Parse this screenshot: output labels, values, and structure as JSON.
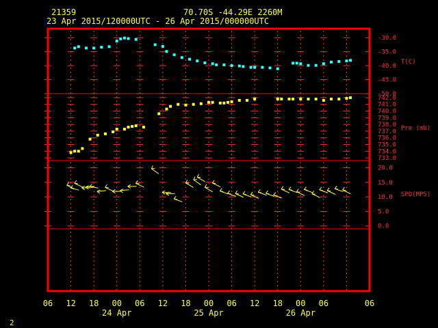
{
  "header": {
    "station": "21359",
    "location": "70.70S   -44.29E   2260M",
    "period": "23 Apr 2015/120000UTC - 26 Apr 2015/000000UTC"
  },
  "footer": {
    "page": "2"
  },
  "colors": {
    "frame": "#ff0000",
    "grid": "#ff3333",
    "temperature": "#33ffff",
    "pressure": "#ffff33",
    "wind": "#ffff55",
    "text": "#ffff44"
  },
  "chart_data": [
    {
      "type": "scatter",
      "panel": "temperature",
      "ylabel": "T(C)",
      "ylim": [
        -50,
        -27.5
      ],
      "yticks": [
        -30,
        -35,
        -40,
        -45,
        -50
      ],
      "ytick_labels": [
        "-30.0",
        "-35.0",
        "-40.0",
        "-45.0",
        "-50.0"
      ],
      "x_hours": [
        13,
        14,
        16,
        18,
        20,
        22,
        24,
        25,
        26,
        27,
        29,
        34,
        36,
        37,
        39,
        41,
        43,
        45,
        47,
        49,
        50,
        52,
        54,
        56,
        57,
        59,
        60,
        62,
        64,
        66,
        70,
        71,
        72,
        74,
        76,
        78,
        80,
        82,
        84,
        85
      ],
      "y": [
        -33.7,
        -33.2,
        -33.7,
        -33.7,
        -33.4,
        -33.2,
        -31.2,
        -30.4,
        -30.1,
        -30.3,
        -30.6,
        -32.5,
        -33.1,
        -34.9,
        -36.1,
        -37.1,
        -37.7,
        -38.3,
        -39.0,
        -39.3,
        -39.7,
        -39.7,
        -40.0,
        -40.1,
        -40.3,
        -40.6,
        -40.6,
        -40.6,
        -40.8,
        -41.1,
        -39.1,
        -39.1,
        -39.3,
        -39.9,
        -39.9,
        -39.3,
        -38.7,
        -38.5,
        -38.3,
        -38.1
      ]
    },
    {
      "type": "scatter",
      "panel": "pressure",
      "ylabel": "Pre (mb)",
      "ylim": [
        732.6,
        742.3
      ],
      "yticks": [
        742,
        741,
        740,
        739,
        738,
        737,
        736,
        735,
        734,
        733
      ],
      "ytick_labels": [
        "742.0",
        "741.0",
        "740.0",
        "739.0",
        "738.0",
        "737.0",
        "736.0",
        "735.0",
        "734.0",
        "733.0"
      ],
      "x_hours": [
        12,
        13,
        14,
        15,
        17,
        19,
        21,
        23,
        24,
        26,
        27,
        28,
        29,
        31,
        35,
        37,
        38,
        40,
        42,
        44,
        46,
        48,
        49,
        51,
        52,
        53,
        54,
        56,
        58,
        60,
        66,
        67,
        69,
        70,
        72,
        74,
        76,
        78,
        80,
        82,
        84,
        85
      ],
      "y": [
        733.8,
        734.0,
        734.0,
        734.4,
        735.8,
        736.4,
        736.6,
        736.9,
        737.3,
        737.3,
        737.6,
        737.7,
        737.8,
        737.6,
        739.6,
        740.3,
        740.7,
        741.0,
        740.9,
        741.0,
        741.1,
        741.3,
        741.3,
        741.2,
        741.2,
        741.3,
        741.4,
        741.6,
        741.6,
        741.8,
        741.8,
        741.8,
        741.8,
        741.8,
        741.8,
        741.8,
        741.8,
        741.6,
        741.8,
        741.8,
        741.9,
        742.0
      ]
    },
    {
      "type": "scatter",
      "panel": "wind",
      "ylabel": "SPD(MPS)",
      "ylim": [
        -1,
        22
      ],
      "yticks": [
        20,
        15,
        10,
        5,
        0
      ],
      "ytick_labels": [
        "20.0",
        "15.0",
        "10.0",
        "5.0",
        "0.0"
      ],
      "x_hours": [
        12,
        13,
        14,
        16,
        17,
        18,
        20,
        22,
        24,
        26,
        28,
        30,
        34,
        37,
        38,
        40,
        43,
        45,
        46,
        48,
        50,
        52,
        54,
        56,
        58,
        60,
        62,
        64,
        66,
        68,
        70,
        72,
        74,
        76,
        78,
        80,
        82,
        84
      ],
      "y": [
        13.3,
        12.7,
        14.0,
        13.1,
        13.5,
        13.3,
        12.0,
        12.6,
        11.9,
        12.3,
        13.6,
        14.0,
        18.8,
        11.5,
        11.1,
        8.8,
        14.0,
        15.0,
        16.0,
        12.5,
        14.1,
        11.5,
        10.7,
        10.5,
        10.5,
        10.1,
        11.1,
        10.7,
        10.1,
        12.0,
        12.0,
        11.1,
        12.0,
        10.4,
        11.9,
        11.5,
        12.3,
        11.7
      ],
      "dir_deg": [
        65,
        75,
        65,
        90,
        95,
        80,
        95,
        65,
        90,
        95,
        90,
        65,
        55,
        90,
        90,
        70,
        60,
        55,
        60,
        60,
        65,
        70,
        70,
        65,
        70,
        65,
        70,
        70,
        70,
        65,
        70,
        65,
        70,
        65,
        70,
        65,
        70,
        65
      ]
    }
  ],
  "x_axis": {
    "tick_labels": [
      "06",
      "12",
      "18",
      "00",
      "06",
      "12",
      "18",
      "00",
      "06",
      "12",
      "18",
      "00",
      "06"
    ],
    "tick_hours": [
      6,
      12,
      18,
      24,
      30,
      36,
      42,
      48,
      54,
      60,
      66,
      72,
      78
    ],
    "date_labels": [
      {
        "text": "24 Apr",
        "hour": 24
      },
      {
        "text": "25 Apr",
        "hour": 48
      },
      {
        "text": "26 Apr",
        "hour": 72
      }
    ]
  }
}
